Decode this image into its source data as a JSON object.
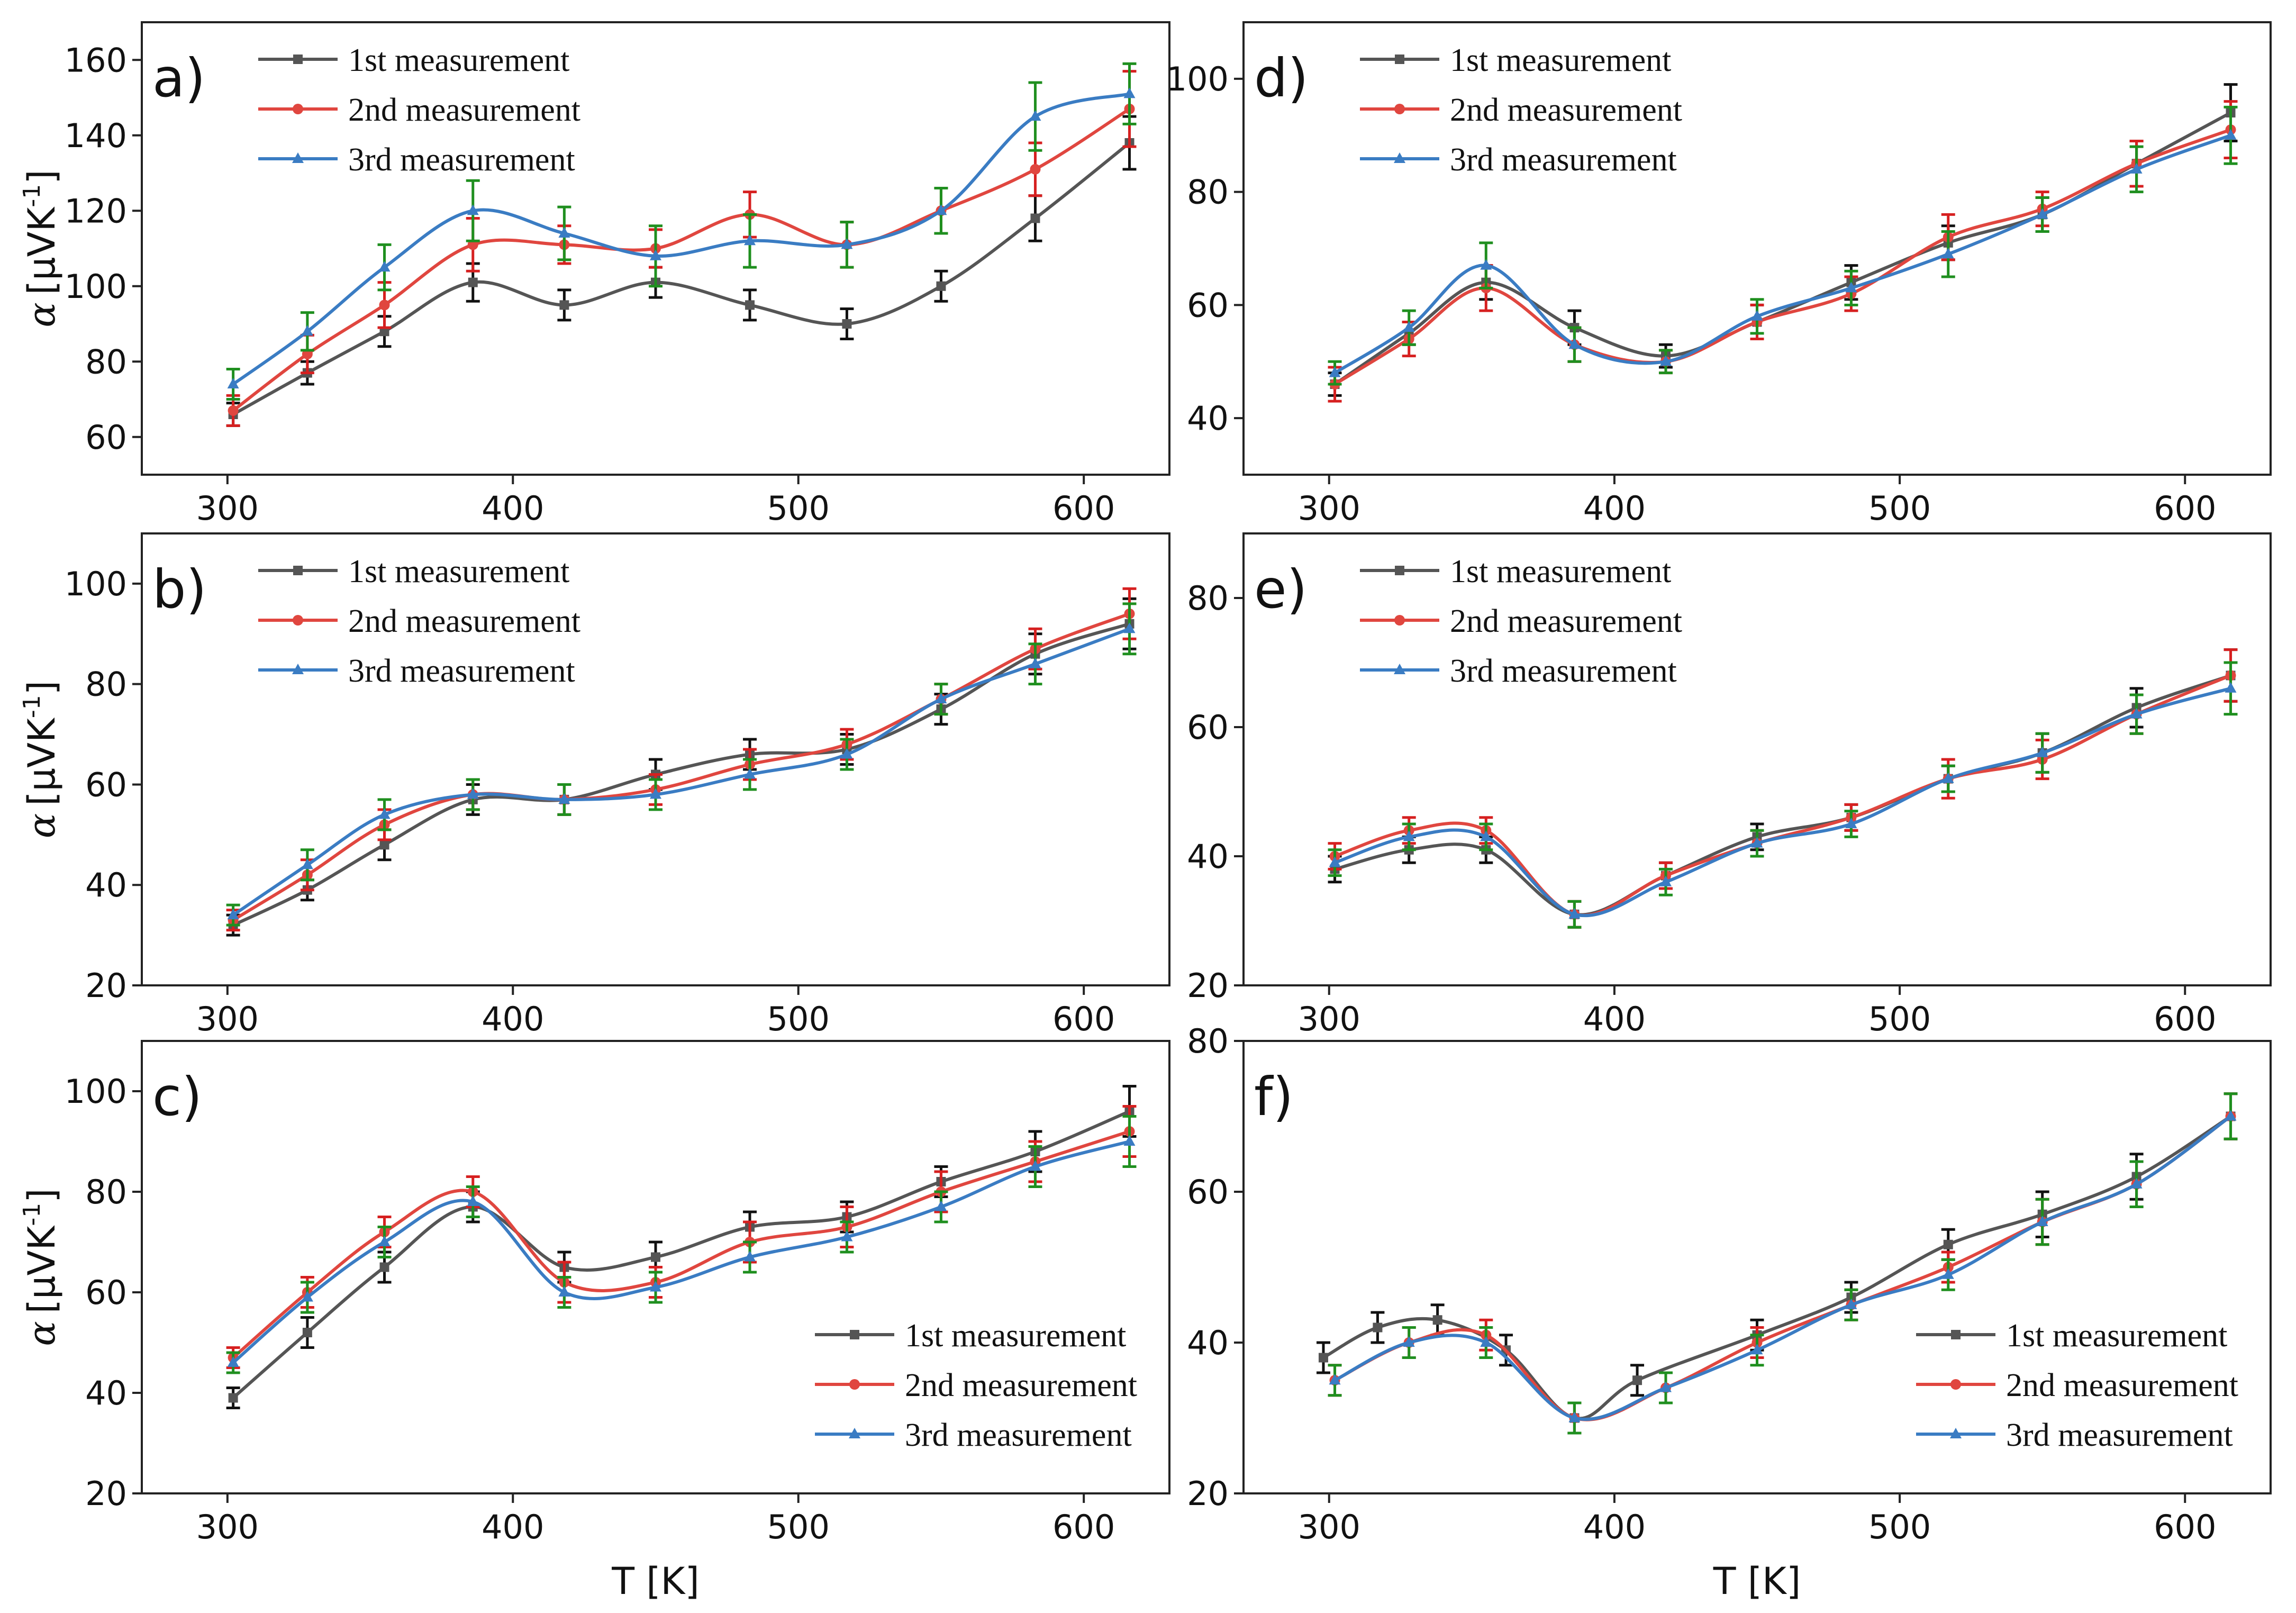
{
  "figure": {
    "x_axis_label": "T [K]",
    "y_axis_label_symbol": "α",
    "y_axis_label_unit": "[μVK",
    "y_axis_label_exponent": "-1",
    "y_axis_label_close": "]",
    "series_colors": [
      "#555555",
      "#e0463f",
      "#3a7cc3"
    ],
    "errorbar_colors": [
      "#111111",
      "#d62020",
      "#1f8f1f"
    ]
  },
  "chart_data": [
    {
      "type": "line",
      "panel": "a)",
      "xlabel": "",
      "ylabel": "α [μVK-1]",
      "xlim": [
        270,
        630
      ],
      "ylim": [
        50,
        170
      ],
      "xticks": [
        300,
        400,
        500,
        600
      ],
      "yticks": [
        60,
        80,
        100,
        120,
        140,
        160
      ],
      "legend_position": "top-left",
      "x": [
        302,
        328,
        355,
        386,
        418,
        450,
        483,
        517,
        550,
        583,
        616
      ],
      "series": [
        {
          "name": "1st measurement",
          "values": [
            66,
            77,
            88,
            101,
            95,
            101,
            95,
            90,
            100,
            118,
            138
          ],
          "errors": [
            3,
            3,
            4,
            5,
            4,
            4,
            4,
            4,
            4,
            6,
            7
          ]
        },
        {
          "name": "2nd measurement",
          "values": [
            67,
            82,
            95,
            111,
            111,
            110,
            119,
            111,
            120,
            131,
            147
          ],
          "errors": [
            4,
            5,
            6,
            7,
            5,
            5,
            6,
            6,
            6,
            7,
            10
          ]
        },
        {
          "name": "3rd measurement",
          "values": [
            74,
            88,
            105,
            120,
            114,
            108,
            112,
            111,
            120,
            145,
            151
          ],
          "errors": [
            4,
            5,
            6,
            8,
            7,
            8,
            7,
            6,
            6,
            9,
            8
          ]
        }
      ]
    },
    {
      "type": "line",
      "panel": "b)",
      "xlabel": "",
      "ylabel": "α [μVK-1]",
      "xlim": [
        270,
        630
      ],
      "ylim": [
        20,
        110
      ],
      "xticks": [
        300,
        400,
        500,
        600
      ],
      "yticks": [
        20,
        40,
        60,
        80,
        100
      ],
      "legend_position": "top-left",
      "x": [
        302,
        328,
        355,
        386,
        418,
        450,
        483,
        517,
        550,
        583,
        616
      ],
      "series": [
        {
          "name": "1st measurement",
          "values": [
            32,
            39,
            48,
            57,
            57,
            62,
            66,
            67,
            75,
            86,
            92
          ],
          "errors": [
            2,
            2,
            3,
            3,
            3,
            3,
            3,
            3,
            3,
            4,
            5
          ]
        },
        {
          "name": "2nd measurement",
          "values": [
            33,
            42,
            52,
            58,
            57,
            59,
            64,
            68,
            77,
            87,
            94
          ],
          "errors": [
            2,
            3,
            3,
            3,
            3,
            3,
            3,
            3,
            3,
            4,
            5
          ]
        },
        {
          "name": "3rd measurement",
          "values": [
            34,
            44,
            54,
            58,
            57,
            58,
            62,
            66,
            77,
            84,
            91
          ],
          "errors": [
            2,
            3,
            3,
            3,
            3,
            3,
            3,
            3,
            3,
            4,
            5
          ]
        }
      ]
    },
    {
      "type": "line",
      "panel": "c)",
      "xlabel": "T [K]",
      "ylabel": "α [μVK-1]",
      "xlim": [
        270,
        630
      ],
      "ylim": [
        20,
        110
      ],
      "xticks": [
        300,
        400,
        500,
        600
      ],
      "yticks": [
        20,
        40,
        60,
        80,
        100
      ],
      "legend_position": "bottom-right",
      "x": [
        302,
        328,
        355,
        386,
        418,
        450,
        483,
        517,
        550,
        583,
        616
      ],
      "series": [
        {
          "name": "1st measurement",
          "values": [
            39,
            52,
            65,
            77,
            65,
            67,
            73,
            75,
            82,
            88,
            96
          ],
          "errors": [
            2,
            3,
            3,
            3,
            3,
            3,
            3,
            3,
            3,
            4,
            5
          ]
        },
        {
          "name": "2nd measurement",
          "values": [
            47,
            60,
            72,
            80,
            62,
            62,
            70,
            73,
            80,
            86,
            92
          ],
          "errors": [
            2,
            3,
            3,
            3,
            4,
            3,
            4,
            4,
            4,
            4,
            5
          ]
        },
        {
          "name": "3rd measurement",
          "values": [
            46,
            59,
            70,
            78,
            60,
            61,
            67,
            71,
            77,
            85,
            90
          ],
          "errors": [
            2,
            3,
            3,
            3,
            3,
            3,
            3,
            3,
            3,
            4,
            5
          ]
        }
      ]
    },
    {
      "type": "line",
      "panel": "d)",
      "xlabel": "",
      "ylabel": "",
      "xlim": [
        270,
        630
      ],
      "ylim": [
        30,
        110
      ],
      "xticks": [
        300,
        400,
        500,
        600
      ],
      "yticks": [
        40,
        60,
        80,
        100
      ],
      "legend_position": "top-left",
      "x": [
        302,
        328,
        355,
        386,
        418,
        450,
        483,
        517,
        550,
        583,
        616
      ],
      "series": [
        {
          "name": "1st measurement",
          "values": [
            46,
            55,
            64,
            56,
            51,
            57,
            64,
            71,
            76,
            85,
            94
          ],
          "errors": [
            2,
            2,
            3,
            3,
            2,
            3,
            3,
            3,
            3,
            4,
            5
          ]
        },
        {
          "name": "2nd measurement",
          "values": [
            46,
            54,
            63,
            53,
            50,
            57,
            62,
            72,
            77,
            85,
            91
          ],
          "errors": [
            3,
            3,
            4,
            3,
            2,
            3,
            3,
            4,
            3,
            4,
            5
          ]
        },
        {
          "name": "3rd measurement",
          "values": [
            48,
            56,
            67,
            53,
            50,
            58,
            63,
            69,
            76,
            84,
            90
          ],
          "errors": [
            2,
            3,
            4,
            3,
            2,
            3,
            3,
            4,
            3,
            4,
            5
          ]
        }
      ]
    },
    {
      "type": "line",
      "panel": "e)",
      "xlabel": "",
      "ylabel": "",
      "xlim": [
        270,
        630
      ],
      "ylim": [
        20,
        90
      ],
      "xticks": [
        300,
        400,
        500,
        600
      ],
      "yticks": [
        20,
        40,
        60,
        80
      ],
      "legend_position": "top-left",
      "x": [
        302,
        328,
        355,
        386,
        418,
        450,
        483,
        517,
        550,
        583,
        616
      ],
      "series": [
        {
          "name": "1st measurement",
          "values": [
            38,
            41,
            41,
            31,
            37,
            43,
            46,
            52,
            56,
            63,
            68
          ],
          "errors": [
            2,
            2,
            2,
            2,
            2,
            2,
            2,
            2,
            3,
            3,
            4
          ]
        },
        {
          "name": "2nd measurement",
          "values": [
            40,
            44,
            44,
            31,
            37,
            42,
            46,
            52,
            55,
            62,
            68
          ],
          "errors": [
            2,
            2,
            2,
            2,
            2,
            2,
            2,
            3,
            3,
            3,
            4
          ]
        },
        {
          "name": "3rd measurement",
          "values": [
            39,
            43,
            43,
            31,
            36,
            42,
            45,
            52,
            56,
            62,
            66
          ],
          "errors": [
            2,
            2,
            2,
            2,
            2,
            2,
            2,
            2,
            3,
            3,
            4
          ]
        }
      ]
    },
    {
      "type": "line",
      "panel": "f)",
      "xlabel": "T [K]",
      "ylabel": "",
      "xlim": [
        270,
        630
      ],
      "ylim": [
        20,
        80
      ],
      "xticks": [
        300,
        400,
        500,
        600
      ],
      "yticks": [
        20,
        40,
        60,
        80
      ],
      "legend_position": "bottom-right",
      "series": [
        {
          "name": "1st measurement",
          "x": [
            298,
            317,
            338,
            362,
            386,
            408,
            450,
            483,
            517,
            550,
            583,
            616
          ],
          "values": [
            38,
            42,
            43,
            39,
            30,
            35,
            41,
            46,
            53,
            57,
            62,
            70
          ],
          "errors": [
            2,
            2,
            2,
            2,
            2,
            2,
            2,
            2,
            2,
            3,
            3,
            3
          ]
        },
        {
          "name": "2nd measurement",
          "x": [
            302,
            328,
            355,
            386,
            418,
            450,
            483,
            517,
            550,
            583,
            616
          ],
          "values": [
            35,
            40,
            41,
            30,
            34,
            40,
            45,
            50,
            56,
            61,
            70
          ],
          "errors": [
            2,
            2,
            2,
            2,
            2,
            2,
            2,
            2,
            3,
            3,
            3
          ]
        },
        {
          "name": "3rd measurement",
          "x": [
            302,
            328,
            355,
            386,
            418,
            450,
            483,
            517,
            550,
            583,
            616
          ],
          "values": [
            35,
            40,
            40,
            30,
            34,
            39,
            45,
            49,
            56,
            61,
            70
          ],
          "errors": [
            2,
            2,
            2,
            2,
            2,
            2,
            2,
            2,
            3,
            3,
            3
          ]
        }
      ]
    }
  ]
}
